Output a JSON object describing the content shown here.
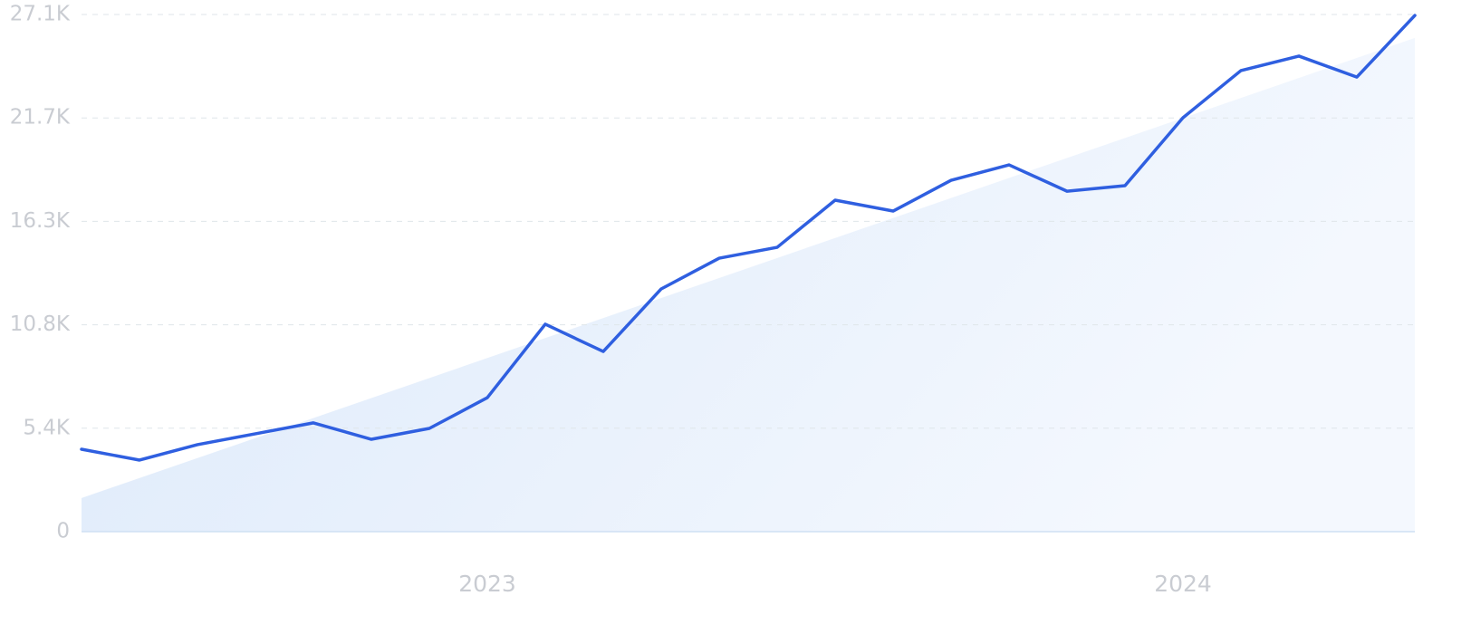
{
  "chart_data": {
    "type": "line",
    "categories": [
      null,
      null,
      null,
      null,
      null,
      null,
      null,
      "2023",
      null,
      null,
      null,
      null,
      null,
      null,
      null,
      null,
      null,
      null,
      null,
      "2024",
      null,
      null,
      null,
      null
    ],
    "values": [
      4320,
      3750,
      4560,
      5130,
      5700,
      4840,
      5410,
      7020,
      10870,
      9440,
      12720,
      14330,
      14900,
      17370,
      16800,
      18410,
      19220,
      17840,
      18130,
      21690,
      24160,
      24920,
      23820,
      27050
    ],
    "color": "#2f5fe0",
    "trend": {
      "values": [
        1760,
        25870
      ],
      "color": "#dde9fa"
    },
    "ylim": [
      0,
      27100
    ],
    "yticks": [
      0,
      {
        "value": 5420,
        "label": "5.4K"
      },
      {
        "value": 10840,
        "label": "10.8K"
      },
      {
        "value": 16260,
        "label": "16.3K"
      },
      {
        "value": 21680,
        "label": "21.7K"
      },
      {
        "value": 27100,
        "label": "27.1K"
      }
    ],
    "grid": true
  }
}
